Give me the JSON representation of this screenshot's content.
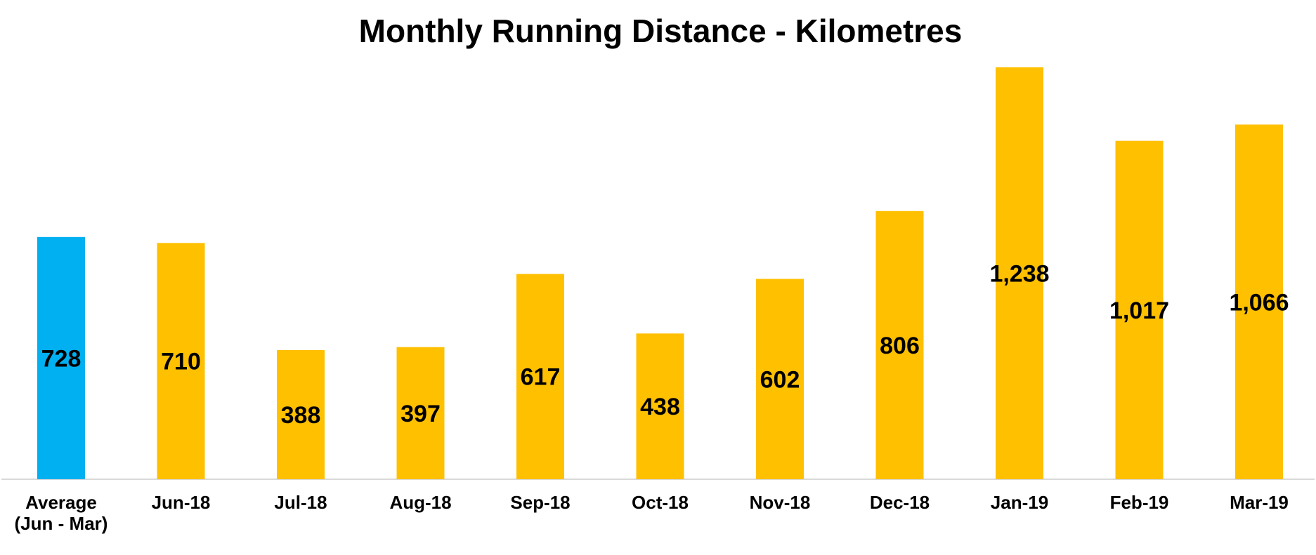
{
  "chart_data": {
    "type": "bar",
    "title": "Monthly Running Distance - Kilometres",
    "xlabel": "",
    "ylabel": "",
    "categories": [
      [
        "Average",
        "(Jun - Mar)"
      ],
      [
        "Jun-18"
      ],
      [
        "Jul-18"
      ],
      [
        "Aug-18"
      ],
      [
        "Sep-18"
      ],
      [
        "Oct-18"
      ],
      [
        "Nov-18"
      ],
      [
        "Dec-18"
      ],
      [
        "Jan-19"
      ],
      [
        "Feb-19"
      ],
      [
        "Mar-19"
      ]
    ],
    "values": [
      728,
      710,
      388,
      397,
      617,
      438,
      602,
      806,
      1238,
      1017,
      1066
    ],
    "data_labels": [
      "728",
      "710",
      "388",
      "397",
      "617",
      "438",
      "602",
      "806",
      "1,238",
      "1,017",
      "1,066"
    ],
    "bar_colors": [
      "#00B0F0",
      "#FFC000",
      "#FFC000",
      "#FFC000",
      "#FFC000",
      "#FFC000",
      "#FFC000",
      "#FFC000",
      "#FFC000",
      "#FFC000",
      "#FFC000"
    ],
    "axis_line_color": "#D9D9D9",
    "ylim": [
      0,
      1240
    ],
    "grid": false,
    "legend": "none"
  }
}
